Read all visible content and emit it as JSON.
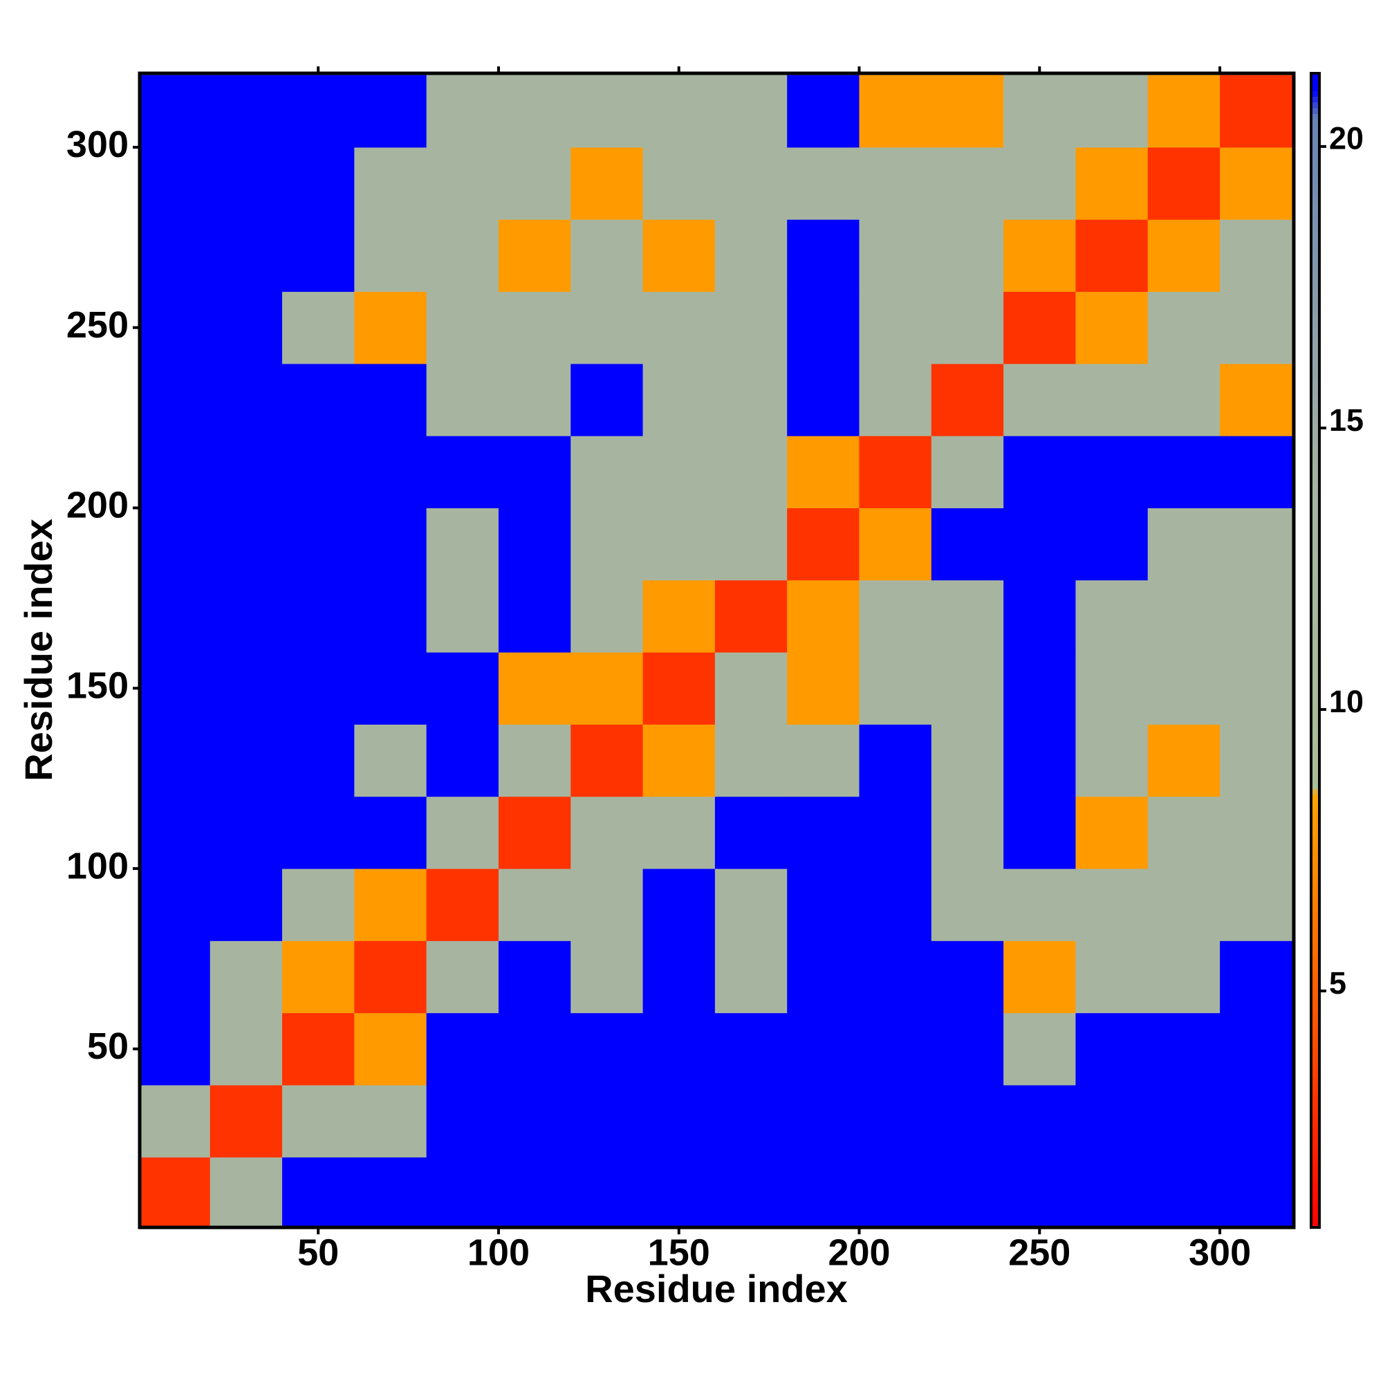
{
  "chart_data": {
    "type": "heatmap",
    "xlabel": "Residue index",
    "ylabel": "Residue index",
    "xlim": [
      0.5,
      320.5
    ],
    "ylim": [
      0.5,
      320.5
    ],
    "xticks": [
      50,
      100,
      150,
      200,
      250,
      300
    ],
    "yticks": [
      50,
      100,
      150,
      200,
      250,
      300
    ],
    "bins": [
      0,
      20,
      40,
      60,
      80,
      100,
      120,
      140,
      160,
      180,
      200,
      220,
      240,
      260,
      280,
      300,
      320
    ],
    "z": [
      [
        3,
        13,
        21,
        21,
        21,
        21,
        21,
        21,
        21,
        21,
        21,
        21,
        21,
        21,
        21,
        21
      ],
      [
        13,
        3,
        13,
        13,
        21,
        21,
        21,
        21,
        21,
        21,
        21,
        21,
        21,
        21,
        21,
        21
      ],
      [
        21,
        13,
        3,
        8,
        21,
        21,
        21,
        21,
        21,
        21,
        21,
        21,
        13,
        21,
        21,
        21
      ],
      [
        21,
        13,
        8,
        3,
        13,
        21,
        13,
        21,
        13,
        21,
        21,
        21,
        8,
        13,
        13,
        21
      ],
      [
        21,
        21,
        13,
        8,
        3,
        13,
        13,
        21,
        13,
        21,
        21,
        13,
        13,
        13,
        13,
        13
      ],
      [
        21,
        21,
        21,
        21,
        13,
        3,
        13,
        13,
        21,
        21,
        21,
        13,
        21,
        8,
        13,
        13
      ],
      [
        21,
        21,
        21,
        13,
        21,
        13,
        3,
        8,
        13,
        13,
        21,
        13,
        21,
        13,
        8,
        13
      ],
      [
        21,
        21,
        21,
        21,
        21,
        8,
        8,
        3,
        13,
        8,
        13,
        13,
        21,
        13,
        13,
        13
      ],
      [
        21,
        21,
        21,
        21,
        13,
        21,
        13,
        8,
        3,
        8,
        13,
        13,
        21,
        13,
        13,
        13
      ],
      [
        21,
        21,
        21,
        21,
        13,
        21,
        13,
        13,
        13,
        3,
        8,
        21,
        21,
        21,
        13,
        13
      ],
      [
        21,
        21,
        21,
        21,
        21,
        21,
        13,
        13,
        13,
        8,
        3,
        13,
        21,
        21,
        21,
        21
      ],
      [
        21,
        21,
        21,
        21,
        13,
        13,
        21,
        13,
        13,
        21,
        13,
        3,
        13,
        13,
        13,
        8
      ],
      [
        21,
        21,
        13,
        8,
        13,
        13,
        13,
        13,
        13,
        21,
        13,
        13,
        3,
        8,
        13,
        13
      ],
      [
        21,
        21,
        21,
        13,
        13,
        8,
        13,
        8,
        13,
        21,
        13,
        13,
        8,
        3,
        8,
        13
      ],
      [
        21,
        21,
        21,
        13,
        13,
        13,
        8,
        13,
        13,
        13,
        13,
        13,
        13,
        8,
        3,
        8
      ],
      [
        21,
        21,
        21,
        21,
        13,
        13,
        13,
        13,
        13,
        21,
        8,
        8,
        13,
        13,
        8,
        3
      ]
    ],
    "zlim": [
      0.8,
      21.3
    ],
    "zticks": [
      5,
      10,
      15,
      20
    ],
    "colorscale": [
      [
        0.8,
        "#ff0000"
      ],
      [
        4,
        "#ff4a00"
      ],
      [
        8.5,
        "#ffa500"
      ],
      [
        8.6,
        "#a9bf97"
      ],
      [
        14,
        "#a6b3a2"
      ],
      [
        20.5,
        "#6a84b4"
      ],
      [
        21,
        "#0000ff"
      ],
      [
        21.3,
        "#0000ff"
      ]
    ]
  }
}
